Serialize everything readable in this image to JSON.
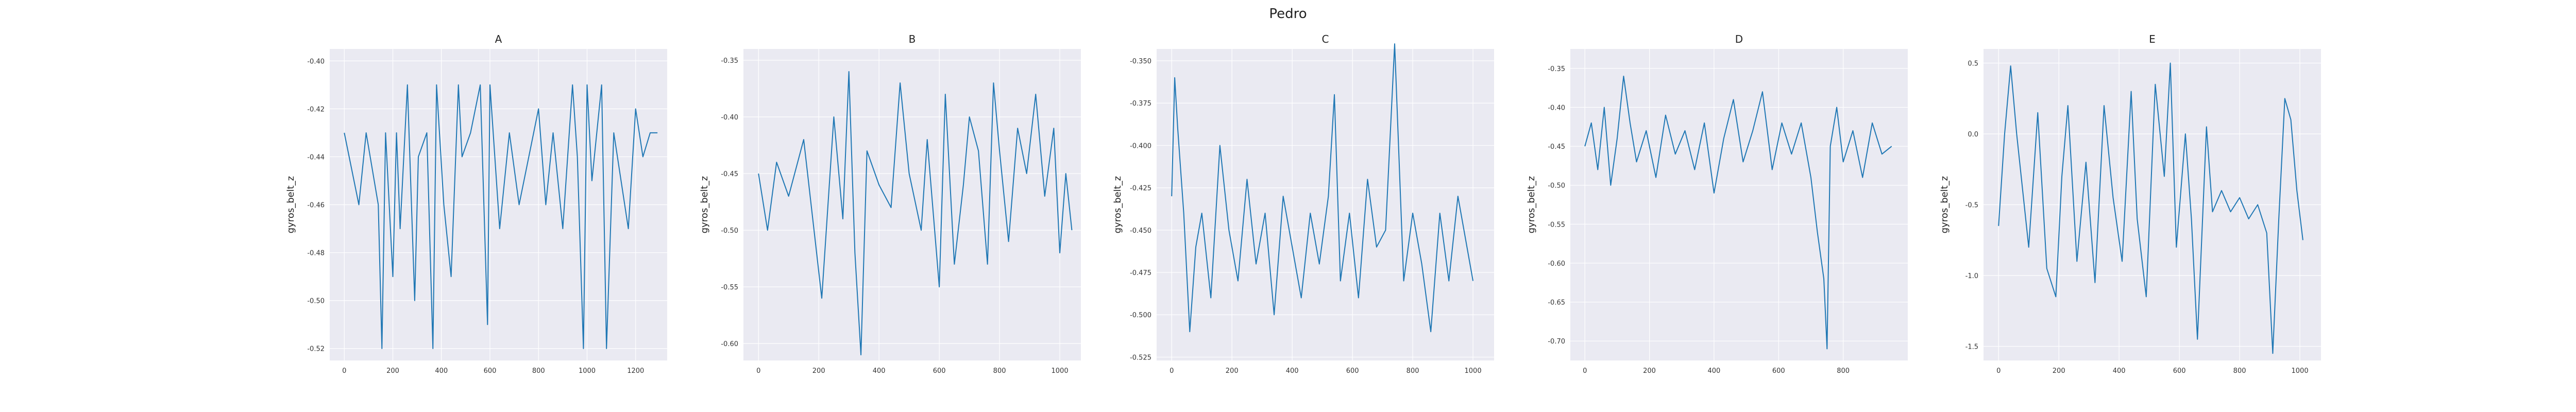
{
  "figure_title": "Pedro",
  "line_color": "#1f77b4",
  "background_color": "#eaeaf2",
  "chart_data": [
    {
      "type": "line",
      "title": "A",
      "xlabel": "",
      "ylabel": "gyros_belt_z",
      "xlim": [
        -60,
        1330
      ],
      "ylim": [
        -0.525,
        -0.395
      ],
      "xticks": [
        0,
        200,
        400,
        600,
        800,
        1000,
        1200
      ],
      "yticks": [
        -0.52,
        -0.5,
        -0.48,
        -0.46,
        -0.44,
        -0.42,
        -0.4
      ],
      "ytick_labels": [
        "-0.52",
        "-0.50",
        "-0.48",
        "-0.46",
        "-0.44",
        "-0.42",
        "-0.40"
      ],
      "grid": true,
      "series": [
        {
          "x": [
            0,
            60,
            90,
            140,
            155,
            170,
            200,
            215,
            230,
            260,
            290,
            305,
            340,
            365,
            380,
            410,
            440,
            470,
            485,
            520,
            560,
            590,
            600,
            640,
            680,
            720,
            760,
            800,
            830,
            860,
            900,
            940,
            960,
            985,
            1000,
            1020,
            1060,
            1080,
            1110,
            1140,
            1170,
            1200,
            1230,
            1260,
            1290
          ],
          "y": [
            -0.43,
            -0.46,
            -0.43,
            -0.46,
            -0.52,
            -0.43,
            -0.49,
            -0.43,
            -0.47,
            -0.41,
            -0.5,
            -0.44,
            -0.43,
            -0.52,
            -0.41,
            -0.46,
            -0.49,
            -0.41,
            -0.44,
            -0.43,
            -0.41,
            -0.51,
            -0.41,
            -0.47,
            -0.43,
            -0.46,
            -0.44,
            -0.42,
            -0.46,
            -0.43,
            -0.47,
            -0.41,
            -0.44,
            -0.52,
            -0.41,
            -0.45,
            -0.41,
            -0.52,
            -0.43,
            -0.45,
            -0.47,
            -0.42,
            -0.44,
            -0.43,
            -0.43
          ]
        }
      ]
    },
    {
      "type": "line",
      "title": "B",
      "xlabel": "",
      "ylabel": "gyros_belt_z",
      "xlim": [
        -50,
        1070
      ],
      "ylim": [
        -0.615,
        -0.34
      ],
      "xticks": [
        0,
        200,
        400,
        600,
        800,
        1000
      ],
      "yticks": [
        -0.6,
        -0.55,
        -0.5,
        -0.45,
        -0.4,
        -0.35
      ],
      "ytick_labels": [
        "-0.60",
        "-0.55",
        "-0.50",
        "-0.45",
        "-0.40",
        "-0.35"
      ],
      "grid": true,
      "series": [
        {
          "x": [
            0,
            30,
            60,
            100,
            150,
            180,
            210,
            250,
            280,
            300,
            320,
            340,
            360,
            400,
            440,
            470,
            500,
            540,
            560,
            600,
            620,
            650,
            680,
            700,
            730,
            760,
            780,
            800,
            830,
            860,
            890,
            920,
            950,
            980,
            1000,
            1020,
            1040
          ],
          "y": [
            -0.45,
            -0.5,
            -0.44,
            -0.47,
            -0.42,
            -0.49,
            -0.56,
            -0.4,
            -0.49,
            -0.36,
            -0.52,
            -0.61,
            -0.43,
            -0.46,
            -0.48,
            -0.37,
            -0.45,
            -0.5,
            -0.42,
            -0.55,
            -0.38,
            -0.53,
            -0.46,
            -0.4,
            -0.43,
            -0.53,
            -0.37,
            -0.43,
            -0.51,
            -0.41,
            -0.45,
            -0.38,
            -0.47,
            -0.41,
            -0.52,
            -0.45,
            -0.5
          ]
        }
      ]
    },
    {
      "type": "line",
      "title": "C",
      "xlabel": "",
      "ylabel": "gyros_belt_z",
      "xlim": [
        -50,
        1070
      ],
      "ylim": [
        -0.527,
        -0.343
      ],
      "xticks": [
        0,
        200,
        400,
        600,
        800,
        1000
      ],
      "yticks": [
        -0.525,
        -0.5,
        -0.475,
        -0.45,
        -0.425,
        -0.4,
        -0.375,
        -0.35
      ],
      "ytick_labels": [
        "-0.525",
        "-0.500",
        "-0.475",
        "-0.450",
        "-0.425",
        "-0.400",
        "-0.375",
        "-0.350"
      ],
      "grid": true,
      "series": [
        {
          "x": [
            0,
            10,
            20,
            40,
            60,
            80,
            100,
            130,
            160,
            190,
            220,
            250,
            280,
            310,
            340,
            370,
            400,
            430,
            460,
            490,
            520,
            540,
            560,
            590,
            620,
            650,
            680,
            710,
            740,
            770,
            800,
            830,
            860,
            890,
            920,
            950,
            980,
            1000
          ],
          "y": [
            -0.43,
            -0.36,
            -0.39,
            -0.44,
            -0.51,
            -0.46,
            -0.44,
            -0.49,
            -0.4,
            -0.45,
            -0.48,
            -0.42,
            -0.47,
            -0.44,
            -0.5,
            -0.43,
            -0.46,
            -0.49,
            -0.44,
            -0.47,
            -0.43,
            -0.37,
            -0.48,
            -0.44,
            -0.49,
            -0.42,
            -0.46,
            -0.45,
            -0.34,
            -0.48,
            -0.44,
            -0.47,
            -0.51,
            -0.44,
            -0.48,
            -0.43,
            -0.46,
            -0.48
          ]
        }
      ]
    },
    {
      "type": "line",
      "title": "D",
      "xlabel": "",
      "ylabel": "gyros_belt_z",
      "xlim": [
        -45,
        1000
      ],
      "ylim": [
        -0.725,
        -0.325
      ],
      "xticks": [
        0,
        200,
        400,
        600,
        800
      ],
      "yticks": [
        -0.7,
        -0.65,
        -0.6,
        -0.55,
        -0.5,
        -0.45,
        -0.4,
        -0.35
      ],
      "ytick_labels": [
        "-0.70",
        "-0.65",
        "-0.60",
        "-0.55",
        "-0.50",
        "-0.45",
        "-0.40",
        "-0.35"
      ],
      "grid": true,
      "series": [
        {
          "x": [
            0,
            20,
            40,
            60,
            80,
            100,
            120,
            140,
            160,
            190,
            220,
            250,
            280,
            310,
            340,
            370,
            400,
            430,
            460,
            490,
            520,
            550,
            580,
            610,
            640,
            670,
            700,
            720,
            740,
            750,
            760,
            780,
            800,
            830,
            860,
            890,
            920,
            950
          ],
          "y": [
            -0.45,
            -0.42,
            -0.48,
            -0.4,
            -0.5,
            -0.44,
            -0.36,
            -0.42,
            -0.47,
            -0.43,
            -0.49,
            -0.41,
            -0.46,
            -0.43,
            -0.48,
            -0.42,
            -0.51,
            -0.44,
            -0.39,
            -0.47,
            -0.43,
            -0.38,
            -0.48,
            -0.42,
            -0.46,
            -0.42,
            -0.49,
            -0.56,
            -0.62,
            -0.71,
            -0.45,
            -0.4,
            -0.47,
            -0.43,
            -0.49,
            -0.42,
            -0.46,
            -0.45
          ]
        }
      ]
    },
    {
      "type": "line",
      "title": "E",
      "xlabel": "",
      "ylabel": "gyros_belt_z",
      "xlim": [
        -50,
        1070
      ],
      "ylim": [
        -1.6,
        0.6
      ],
      "xticks": [
        0,
        200,
        400,
        600,
        800,
        1000
      ],
      "yticks": [
        -1.5,
        -1.0,
        -0.5,
        0.0,
        0.5
      ],
      "ytick_labels": [
        "-1.5",
        "-1.0",
        "-0.5",
        "0.0",
        "0.5"
      ],
      "grid": true,
      "series": [
        {
          "x": [
            0,
            20,
            40,
            60,
            80,
            100,
            130,
            160,
            190,
            210,
            230,
            260,
            290,
            320,
            350,
            380,
            410,
            440,
            460,
            490,
            520,
            550,
            570,
            590,
            620,
            640,
            660,
            690,
            710,
            740,
            770,
            800,
            830,
            860,
            890,
            910,
            930,
            950,
            970,
            990,
            1010
          ],
          "y": [
            -0.65,
            0.0,
            0.48,
            0.0,
            -0.4,
            -0.8,
            0.15,
            -0.95,
            -1.15,
            -0.3,
            0.2,
            -0.9,
            -0.2,
            -1.05,
            0.2,
            -0.45,
            -0.9,
            0.3,
            -0.6,
            -1.15,
            0.35,
            -0.3,
            0.5,
            -0.8,
            0.0,
            -0.6,
            -1.45,
            0.05,
            -0.55,
            -0.4,
            -0.55,
            -0.45,
            -0.6,
            -0.5,
            -0.7,
            -1.55,
            -0.6,
            0.25,
            0.1,
            -0.4,
            -0.75
          ]
        }
      ]
    }
  ]
}
